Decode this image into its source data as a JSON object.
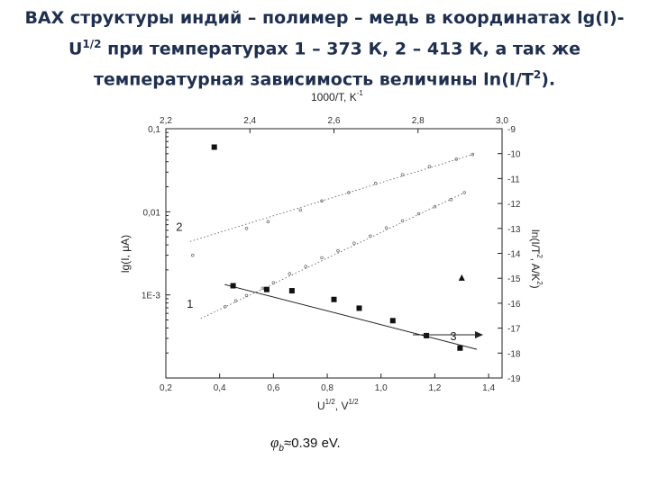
{
  "slide": {
    "title_line1": "ВАХ структуры индий – полимер – медь в координатах lg(I)-",
    "title_line2_pre": "U",
    "title_line2_sup": "1/2",
    "title_line2_post": " при температурах 1 – 373 К, 2 – 413 К, а так же",
    "title_line3_pre": "температурная зависимость величины ln(I/T",
    "title_line3_sup": "2",
    "title_line3_post": ").",
    "phi_symbol": "φ",
    "phi_sub": "b",
    "phi_value": "≈0.39 eV."
  },
  "chart_data": {
    "type": "scatter",
    "xlabel": "U",
    "xlabel_sup": "1/2",
    "xlabel_unit": ", V",
    "xlabel_unit_sup": "1/2",
    "x_top_label": "1000/T, K",
    "x_top_label_sup": "-1",
    "ylabel": "lg(I, μA)",
    "y_right_label": "ln(I/T",
    "y_right_label_sup": "2",
    "y_right_label_post": ", A/K",
    "y_right_label_post_sup": "2",
    "y_right_label_end": ")",
    "xlim": [
      0.2,
      1.45
    ],
    "x_ticks": [
      0.2,
      0.4,
      0.6,
      0.8,
      1.0,
      1.2,
      1.4
    ],
    "x_tick_labels": [
      "0,2",
      "0,4",
      "0,6",
      "0,8",
      "1,0",
      "1,2",
      "1,4"
    ],
    "x_top_lim": [
      2.2,
      3.0
    ],
    "x_top_ticks": [
      2.2,
      2.4,
      2.6,
      2.8,
      3.0
    ],
    "x_top_tick_labels": [
      "2,2",
      "2,4",
      "2,6",
      "2,8",
      "3,0"
    ],
    "ylim_log": [
      0.0001,
      0.1
    ],
    "y_log_scale": true,
    "y_ticks": [
      0.1,
      0.01,
      0.001
    ],
    "y_tick_labels": [
      "0,1",
      "0,01",
      "1E-3"
    ],
    "y_right_lim": [
      -19,
      -9
    ],
    "y_right_ticks": [
      -9,
      -10,
      -11,
      -12,
      -13,
      -14,
      -15,
      -16,
      -17,
      -18,
      -19
    ],
    "y_right_tick_labels": [
      "-9",
      "-10",
      "-11",
      "-12",
      "-13",
      "-14",
      "-15",
      "-16",
      "-17",
      "-18",
      "-19"
    ],
    "grid": false,
    "series": [
      {
        "name": "1",
        "axis": "bottom-left",
        "marker": "open-circle-small",
        "x": [
          0.42,
          0.46,
          0.5,
          0.56,
          0.6,
          0.66,
          0.72,
          0.78,
          0.84,
          0.9,
          0.96,
          1.02,
          1.08,
          1.14,
          1.2,
          1.26,
          1.31
        ],
        "y": [
          0.00072,
          0.00085,
          0.00098,
          0.0012,
          0.0014,
          0.0018,
          0.0022,
          0.0028,
          0.0034,
          0.0042,
          0.0051,
          0.0064,
          0.0078,
          0.0095,
          0.0115,
          0.014,
          0.017
        ],
        "fit_x": [
          0.33,
          1.31
        ],
        "fit_y": [
          0.00052,
          0.017
        ]
      },
      {
        "name": "2",
        "axis": "bottom-left",
        "marker": "open-circle-small",
        "x": [
          0.3,
          0.5,
          0.58,
          0.7,
          0.78,
          0.88,
          0.98,
          1.08,
          1.18,
          1.28,
          1.34
        ],
        "y": [
          0.003,
          0.0063,
          0.0076,
          0.0105,
          0.0135,
          0.017,
          0.022,
          0.028,
          0.035,
          0.043,
          0.049
        ],
        "fit_x": [
          0.29,
          1.35
        ],
        "fit_y": [
          0.0044,
          0.05
        ]
      },
      {
        "name": "3",
        "axis": "top-right",
        "marker": "filled-square",
        "x": [
          2.36,
          2.44,
          2.5,
          2.6,
          2.66,
          2.74,
          2.82,
          2.9
        ],
        "y": [
          -15.3,
          -15.45,
          -15.5,
          -15.85,
          -16.2,
          -16.7,
          -17.3,
          -17.8
        ],
        "fit_x": [
          2.34,
          2.94
        ],
        "fit_y": [
          -15.25,
          -17.85
        ]
      }
    ],
    "extra_points": [
      {
        "axis": "bottom-left",
        "marker": "filled-square",
        "x": 0.38,
        "y": 0.06
      },
      {
        "axis": "bottom-left",
        "marker": "filled-triangle",
        "x": 1.3,
        "y": 0.0016
      }
    ],
    "curve_labels": [
      {
        "text": "1",
        "series": 0
      },
      {
        "text": "2",
        "series": 1
      },
      {
        "text": "3",
        "series": 2
      }
    ]
  }
}
